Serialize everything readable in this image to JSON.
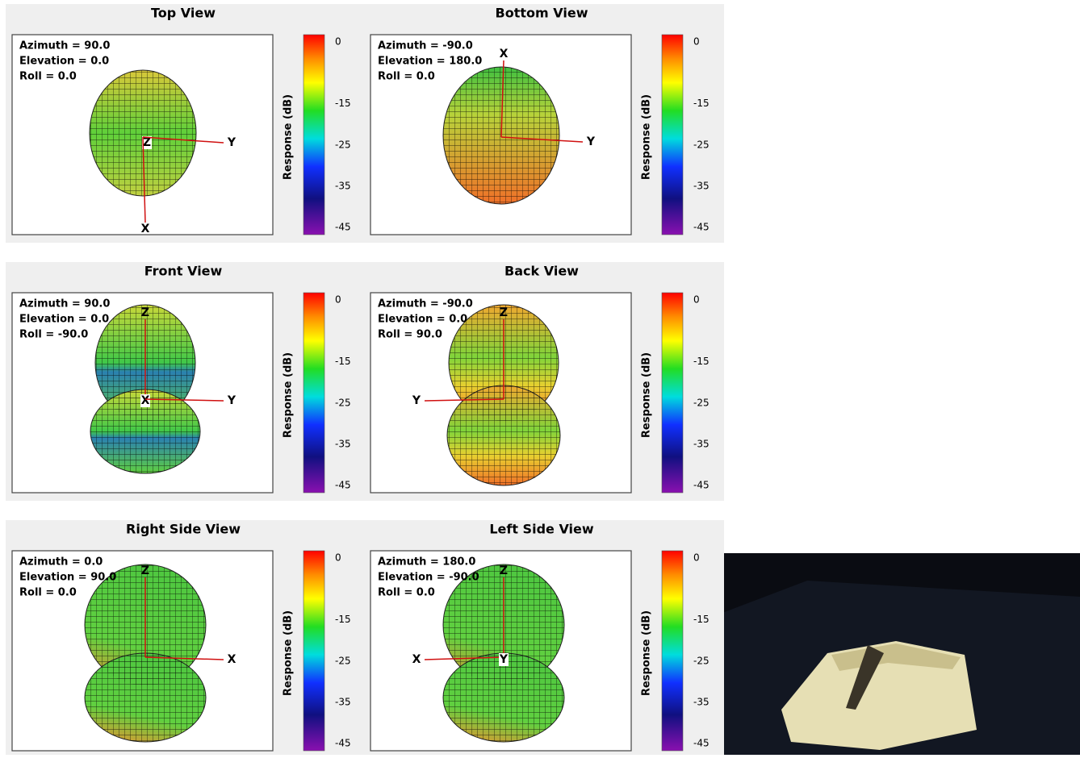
{
  "panels": [
    {
      "title": "Top View",
      "info": [
        "Azimuth = 90.0",
        "Elevation = 0.0",
        "Roll = 0.0"
      ],
      "axes": [
        "Z",
        "Y",
        "X"
      ],
      "colorbar": {
        "label": "Response (dB)",
        "ticks": [
          0,
          -15,
          -25,
          -35,
          -45
        ]
      }
    },
    {
      "title": "Bottom View",
      "info": [
        "Azimuth = -90.0",
        "Elevation = 180.0",
        "Roll = 0.0"
      ],
      "axes": [
        "X",
        "Y"
      ],
      "colorbar": {
        "label": "Response (dB)",
        "ticks": [
          0,
          -15,
          -25,
          -35,
          -45
        ]
      }
    },
    {
      "title": "Front View",
      "info": [
        "Azimuth = 90.0",
        "Elevation = 0.0",
        "Roll = -90.0"
      ],
      "axes": [
        "Z",
        "X",
        "Y"
      ],
      "colorbar": {
        "label": "Response (dB)",
        "ticks": [
          0,
          -15,
          -25,
          -35,
          -45
        ]
      }
    },
    {
      "title": "Back View",
      "info": [
        "Azimuth = -90.0",
        "Elevation = 0.0",
        "Roll = 90.0"
      ],
      "axes": [
        "Z",
        "Y"
      ],
      "colorbar": {
        "label": "Response (dB)",
        "ticks": [
          0,
          -15,
          -25,
          -35,
          -45
        ]
      }
    },
    {
      "title": "Right Side View",
      "info": [
        "Azimuth = 0.0",
        "Elevation = 90.0",
        "Roll = 0.0"
      ],
      "axes": [
        "Z",
        "X"
      ],
      "colorbar": {
        "label": "Response (dB)",
        "ticks": [
          0,
          -15,
          -25,
          -35,
          -45
        ]
      }
    },
    {
      "title": "Left Side View",
      "info": [
        "Azimuth = 180.0",
        "Elevation = -90.0",
        "Roll = 0.0"
      ],
      "axes": [
        "Z",
        "X",
        "Y"
      ],
      "colorbar": {
        "label": "Response (dB)",
        "ticks": [
          0,
          -15,
          -25,
          -35,
          -45
        ]
      }
    }
  ]
}
